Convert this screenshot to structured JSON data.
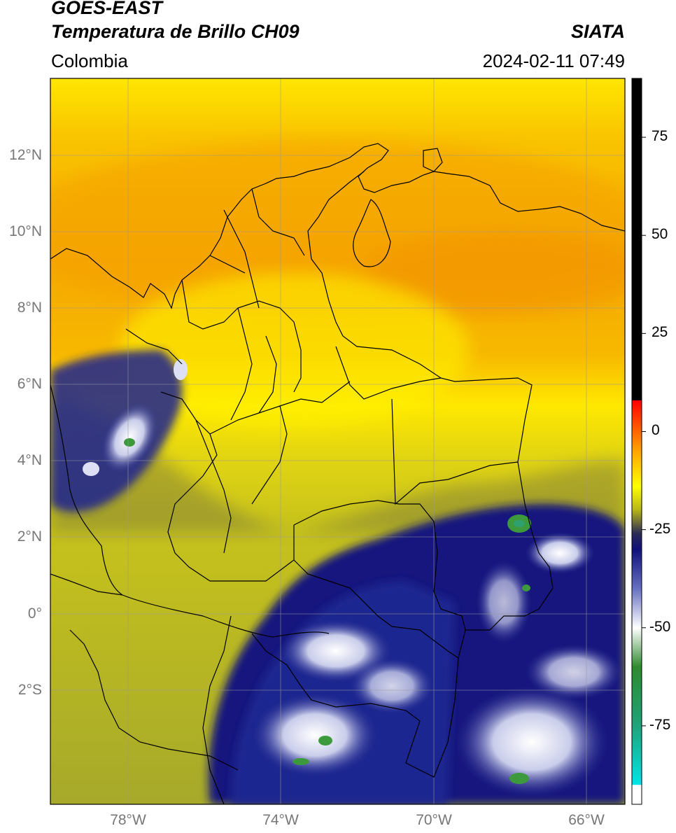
{
  "header": {
    "satellite": "GOES-EAST",
    "product": "Temperatura de Brillo CH09",
    "region": "Colombia",
    "agency": "SIATA",
    "datetime": "2024-02-11 07:49"
  },
  "map": {
    "lat_ticks": [
      "12°N",
      "10°N",
      "8°N",
      "6°N",
      "4°N",
      "2°N",
      "0°",
      "2°S"
    ],
    "lon_ticks": [
      "78°W",
      "74°W",
      "70°W",
      "66°W"
    ],
    "extent": {
      "lon": [
        -80,
        -65
      ],
      "lat": [
        -5,
        14
      ]
    },
    "colors": {
      "warm_orange": "#f5a200",
      "yellow": "#ffe600",
      "olive": "#b8b81e",
      "deep_blue": "#1c1f86",
      "cloud_white": "#e8eaf5",
      "green": "#3c9a3c"
    }
  },
  "colorbar": {
    "ticks": [
      "75",
      "50",
      "25",
      "0",
      "-25",
      "-50",
      "-75"
    ],
    "range": [
      -95,
      90
    ],
    "stops": [
      {
        "v": 90,
        "c": "#000000"
      },
      {
        "v": 8,
        "c": "#000000"
      },
      {
        "v": 7.9,
        "c": "#ff0000"
      },
      {
        "v": -5,
        "c": "#ffa500"
      },
      {
        "v": -14,
        "c": "#ffff00"
      },
      {
        "v": -20,
        "c": "#b5b51a"
      },
      {
        "v": -26,
        "c": "#2b2b55"
      },
      {
        "v": -30,
        "c": "#10107a"
      },
      {
        "v": -40,
        "c": "#6670c0"
      },
      {
        "v": -50,
        "c": "#ffffff"
      },
      {
        "v": -60,
        "c": "#2f8a2f"
      },
      {
        "v": -75,
        "c": "#1fa37a"
      },
      {
        "v": -90,
        "c": "#00e5e5"
      },
      {
        "v": -90.1,
        "c": "#ffffff"
      },
      {
        "v": -95,
        "c": "#ffffff"
      }
    ]
  }
}
